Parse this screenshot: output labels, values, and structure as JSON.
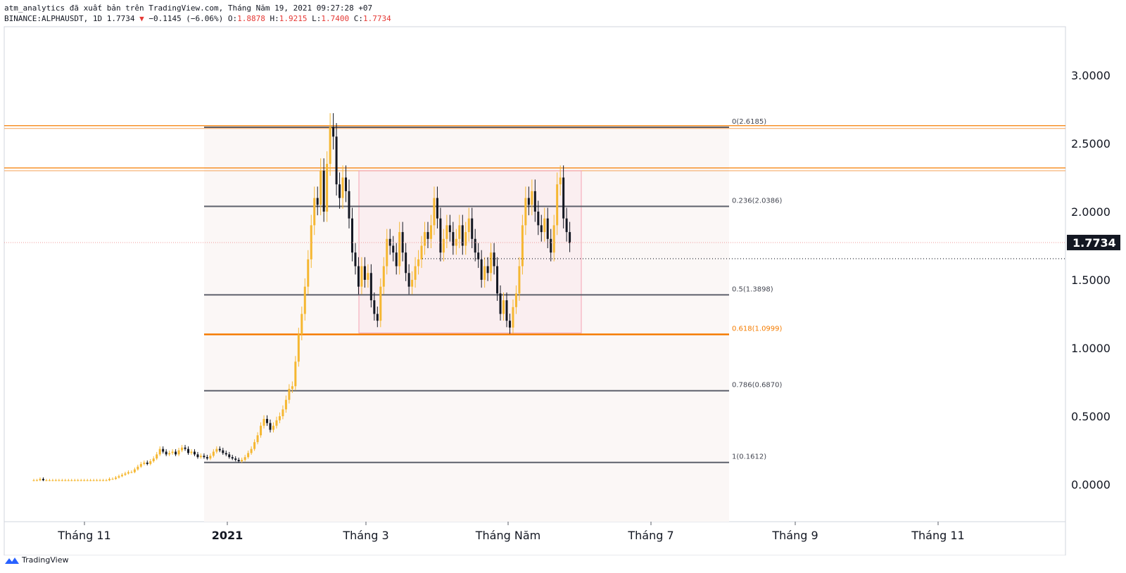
{
  "header": {
    "published_line": "atm_analytics đã xuất bản trên TradingView.com, Tháng Năm 19, 2021 09:27:28 +07",
    "symbol": "BINANCE:ALPHAUSDT, 1D",
    "last": "1.7734",
    "change": "−0.1145 (−6.06%)",
    "o_label": "O:",
    "o_value": "1.8878",
    "h_label": "H:",
    "h_value": "1.9215",
    "l_label": "L:",
    "l_value": "1.7400",
    "c_label": "C:",
    "c_value": "1.7734"
  },
  "footer": {
    "brand": "TradingView"
  },
  "chart_data": {
    "type": "candlestick",
    "y_ticks": [
      "3.0000",
      "2.5000",
      "2.0000",
      "1.5000",
      "1.0000",
      "0.5000",
      "0.0000"
    ],
    "x_ticks": [
      {
        "label": "Tháng 11",
        "bold": false
      },
      {
        "label": "2021",
        "bold": true
      },
      {
        "label": "Tháng 3",
        "bold": false
      },
      {
        "label": "Tháng Năm",
        "bold": false
      },
      {
        "label": "Tháng 7",
        "bold": false
      },
      {
        "label": "Tháng 9",
        "bold": false
      },
      {
        "label": "Tháng 11",
        "bold": false
      }
    ],
    "ylim": [
      -0.25,
      3.3
    ],
    "last_price_label": "1.7734",
    "last_price": 1.7734,
    "dotted_level": 1.655,
    "fib_levels": [
      {
        "label": "0(2.6185)",
        "value": 2.6185,
        "highlight": false
      },
      {
        "label": "0.236(2.0386)",
        "value": 2.0386,
        "highlight": false
      },
      {
        "label": "0.5(1.3898)",
        "value": 1.3898,
        "highlight": false
      },
      {
        "label": "0.618(1.0999)",
        "value": 1.0999,
        "highlight": true
      },
      {
        "label": "0.786(0.6870)",
        "value": 0.687,
        "highlight": false
      },
      {
        "label": "1(0.1612)",
        "value": 0.1612,
        "highlight": false
      }
    ],
    "horizontal_resistances": [
      2.62,
      2.31
    ],
    "range_box": {
      "top": 2.3,
      "bottom": 1.11
    },
    "candles_close": [
      0.03,
      0.03,
      0.04,
      0.03,
      0.03,
      0.03,
      0.03,
      0.03,
      0.03,
      0.03,
      0.03,
      0.03,
      0.03,
      0.03,
      0.03,
      0.03,
      0.03,
      0.03,
      0.03,
      0.03,
      0.03,
      0.03,
      0.03,
      0.03,
      0.04,
      0.04,
      0.05,
      0.06,
      0.07,
      0.08,
      0.09,
      0.09,
      0.11,
      0.13,
      0.15,
      0.16,
      0.15,
      0.17,
      0.19,
      0.22,
      0.26,
      0.24,
      0.22,
      0.23,
      0.24,
      0.22,
      0.25,
      0.27,
      0.26,
      0.23,
      0.24,
      0.22,
      0.2,
      0.21,
      0.2,
      0.19,
      0.21,
      0.24,
      0.26,
      0.25,
      0.23,
      0.22,
      0.2,
      0.19,
      0.18,
      0.17,
      0.18,
      0.2,
      0.23,
      0.26,
      0.31,
      0.36,
      0.43,
      0.48,
      0.45,
      0.4,
      0.43,
      0.47,
      0.5,
      0.55,
      0.62,
      0.7,
      0.72,
      0.9,
      1.1,
      1.25,
      1.45,
      1.65,
      1.9,
      2.1,
      2.05,
      2.3,
      2.0,
      2.35,
      2.62,
      2.55,
      2.2,
      2.1,
      2.25,
      2.15,
      1.95,
      1.7,
      1.6,
      1.45,
      1.6,
      1.5,
      1.55,
      1.35,
      1.25,
      1.2,
      1.45,
      1.6,
      1.8,
      1.75,
      1.7,
      1.6,
      1.85,
      1.7,
      1.55,
      1.45,
      1.5,
      1.6,
      1.65,
      1.75,
      1.85,
      1.8,
      1.9,
      2.1,
      1.95,
      1.7,
      1.8,
      1.9,
      1.85,
      1.75,
      1.8,
      1.9,
      1.75,
      1.85,
      1.95,
      1.8,
      1.7,
      1.65,
      1.5,
      1.6,
      1.55,
      1.7,
      1.6,
      1.4,
      1.25,
      1.35,
      1.2,
      1.15,
      1.3,
      1.4,
      1.6,
      1.9,
      2.1,
      2.05,
      2.15,
      2.0,
      1.9,
      1.85,
      1.95,
      1.8,
      1.7,
      1.9,
      2.2,
      2.25,
      1.95,
      1.85,
      1.77
    ]
  }
}
